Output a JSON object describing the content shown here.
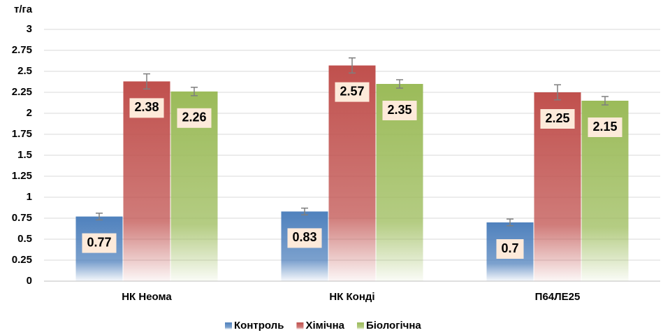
{
  "chart_data": {
    "type": "bar",
    "y_label": "т/га",
    "categories": [
      "НК Неома",
      "НК Конді",
      "П64ЛЕ25"
    ],
    "series": [
      {
        "name": "Контроль",
        "color": "#4f81bd",
        "values": [
          0.77,
          0.83,
          0.7
        ],
        "errors": [
          0.04,
          0.04,
          0.04
        ]
      },
      {
        "name": "Хімічна",
        "color": "#c0504d",
        "values": [
          2.38,
          2.57,
          2.25
        ],
        "errors": [
          0.09,
          0.09,
          0.09
        ]
      },
      {
        "name": "Біологічна",
        "color": "#9bbb59",
        "values": [
          2.26,
          2.35,
          2.15
        ],
        "errors": [
          0.05,
          0.05,
          0.05
        ]
      }
    ],
    "ylim": [
      0,
      3
    ],
    "yticks": [
      0,
      0.25,
      0.5,
      0.75,
      1,
      1.25,
      1.5,
      1.75,
      2,
      2.25,
      2.5,
      2.75,
      3
    ],
    "grid": true,
    "legend": "bottom"
  }
}
